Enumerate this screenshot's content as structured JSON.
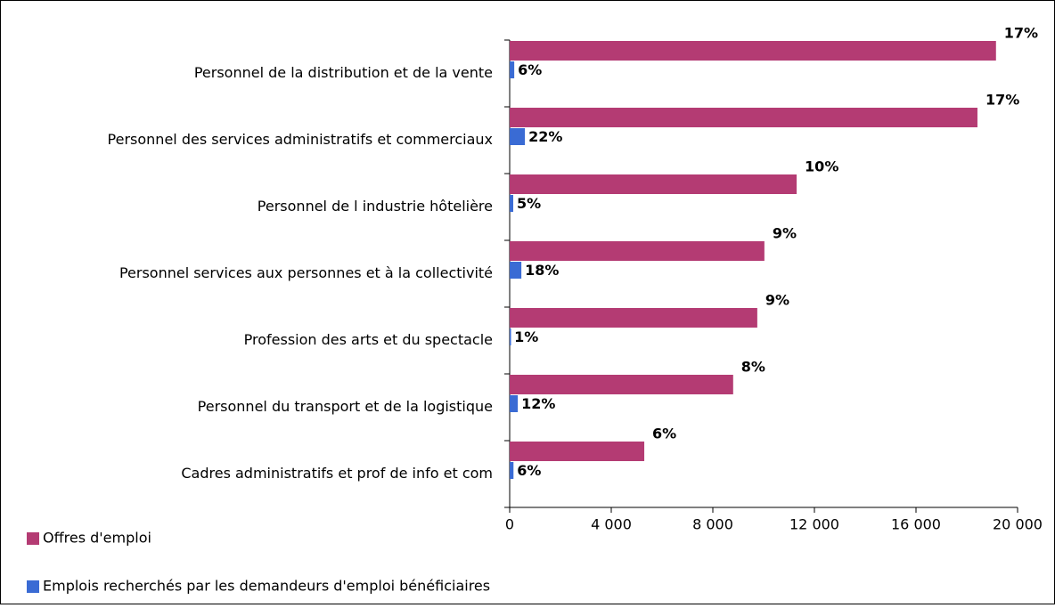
{
  "chart_data": {
    "type": "hbar",
    "categories": [
      "Personnel de la distribution et de la vente",
      "Personnel des services administratifs et commerciaux",
      "Personnel de l industrie hôtelière",
      "Personnel services aux personnes et à la collectivité",
      "Profession des arts et du spectacle",
      "Personnel du transport et de la logistique",
      "Cadres administratifs et prof de info et com"
    ],
    "series": [
      {
        "name": "Offres d'emploi",
        "color": "#b43b73",
        "values": [
          19150,
          18420,
          11300,
          10030,
          9750,
          8800,
          5300
        ],
        "data_labels": [
          "17%",
          "17%",
          "10%",
          "9%",
          "9%",
          "8%",
          "6%"
        ]
      },
      {
        "name": "Emplois recherchés par les demandeurs d'emploi bénéficiaires",
        "color": "#3a6bd4",
        "values": [
          180,
          600,
          140,
          460,
          40,
          320,
          150
        ],
        "data_labels": [
          "6%",
          "22%",
          "5%",
          "18%",
          "1%",
          "12%",
          "6%"
        ]
      }
    ],
    "xlim": [
      0,
      20000
    ],
    "xticks": [
      0,
      {
        "value": 4000,
        "label": "4 000"
      },
      {
        "value": 8000,
        "label": "8 000"
      },
      {
        "value": 12000,
        "label": "12 000"
      },
      {
        "value": 16000,
        "label": "16 000"
      },
      {
        "value": 20000,
        "label": "20 000"
      }
    ],
    "legend": "bottom-left"
  }
}
